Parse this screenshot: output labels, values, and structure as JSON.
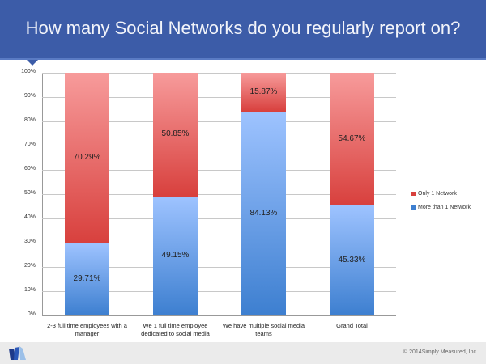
{
  "header": {
    "title": "How many Social Networks do you regularly report on?"
  },
  "footer": {
    "copyright": "© 2014Simply Measured, Inc",
    "logo": "simply-measured-logo"
  },
  "colors": {
    "header_bg": "#3c5ca8",
    "only_1_network": "#d8403d",
    "more_than_1_network": "#3d7fd0"
  },
  "legend": {
    "items": [
      {
        "label": "Only 1 Network",
        "color": "#d8403d"
      },
      {
        "label": "More than 1 Network",
        "color": "#3d7fd0"
      }
    ]
  },
  "axis": {
    "yticks": [
      "100%",
      "90%",
      "80%",
      "70%",
      "60%",
      "50%",
      "40%",
      "30%",
      "20%",
      "10%",
      "0%"
    ]
  },
  "bars": [
    {
      "category": "2-3 full time employees with a manager",
      "blue_label": "29.71%",
      "red_label": "70.29%"
    },
    {
      "category": "We 1 full time employee dedicated to social media",
      "blue_label": "49.15%",
      "red_label": "50.85%"
    },
    {
      "category": "We have multiple social media teams",
      "blue_label": "84.13%",
      "red_label": "15.87%"
    },
    {
      "category": "Grand Total",
      "blue_label": "45.33%",
      "red_label": "54.67%"
    }
  ],
  "chart_data": {
    "type": "bar",
    "stacked": true,
    "title": "How many Social Networks do you regularly report on?",
    "categories": [
      "2-3 full time employees with a manager",
      "We 1 full time employee dedicated to social media",
      "We have multiple social media teams",
      "Grand Total"
    ],
    "series": [
      {
        "name": "More than 1 Network",
        "values": [
          29.71,
          49.15,
          84.13,
          45.33
        ]
      },
      {
        "name": "Only 1 Network",
        "values": [
          70.29,
          50.85,
          15.87,
          54.67
        ]
      }
    ],
    "xlabel": "",
    "ylabel": "",
    "ylim": [
      0,
      100
    ],
    "ytick_format": "percent",
    "grid": true,
    "legend_position": "right"
  }
}
